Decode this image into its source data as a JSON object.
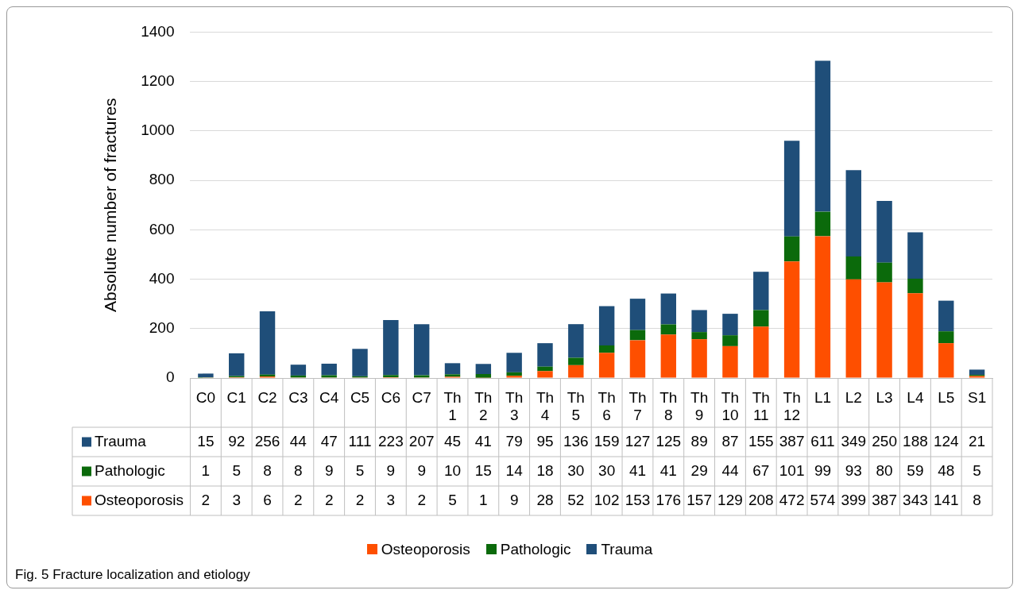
{
  "chart_data": {
    "type": "bar",
    "ylabel": "Absolute number of fractures",
    "categories": [
      "C0",
      "C1",
      "C2",
      "C3",
      "C4",
      "C5",
      "C6",
      "C7",
      "Th 1",
      "Th 2",
      "Th 3",
      "Th 4",
      "Th 5",
      "Th 6",
      "Th 7",
      "Th 8",
      "Th 9",
      "Th 10",
      "Th 11",
      "Th 12",
      "L1",
      "L2",
      "L3",
      "L4",
      "L5",
      "S1"
    ],
    "series": [
      {
        "name": "Osteoporosis",
        "color": "#fe4f00",
        "values": [
          2,
          3,
          6,
          2,
          2,
          2,
          3,
          2,
          5,
          1,
          9,
          28,
          52,
          102,
          153,
          176,
          157,
          129,
          208,
          472,
          574,
          399,
          387,
          343,
          141,
          8
        ]
      },
      {
        "name": "Pathologic",
        "color": "#0b6a0b",
        "values": [
          1,
          5,
          8,
          8,
          9,
          5,
          9,
          9,
          10,
          15,
          14,
          18,
          30,
          30,
          41,
          41,
          29,
          44,
          67,
          101,
          99,
          93,
          80,
          59,
          48,
          5
        ]
      },
      {
        "name": "Trauma",
        "color": "#1f4e79",
        "values": [
          15,
          92,
          256,
          44,
          47,
          111,
          223,
          207,
          45,
          41,
          79,
          95,
          136,
          159,
          127,
          125,
          89,
          87,
          155,
          387,
          611,
          349,
          250,
          188,
          124,
          21
        ]
      }
    ],
    "stacked": true,
    "ylim": [
      0,
      1400
    ],
    "yticks": [
      0,
      200,
      400,
      600,
      800,
      1000,
      1200,
      1400
    ],
    "grid": "y",
    "legend": "bottom",
    "data_labels": true,
    "annotations": [
      "Fig. 5 Fracture localization and etiology"
    ]
  }
}
